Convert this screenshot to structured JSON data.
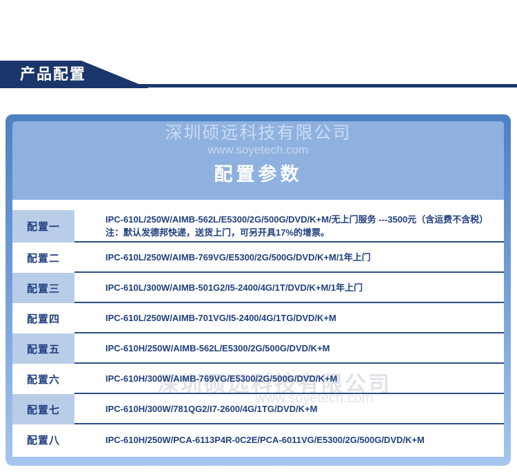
{
  "banner": {
    "label": "产品配置"
  },
  "panel": {
    "watermark": {
      "company": "深圳硕远科技有限公司",
      "website": "www.soyetech.com"
    },
    "title": "配置参数",
    "table": {
      "rows": [
        {
          "label": "配置一",
          "line1": "IPC-610L/250W/AIMB-562L/E5300/2G/500G/DVD/K+M/无上门服务 ---3500元（含运费不含税）",
          "line2": "注：默认发德邦快递，送货上门，可另开具17%的增票。"
        },
        {
          "label": "配置二",
          "line1": "IPC-610L/250W/AIMB-769VG/E5300/2G/500G/DVD/K+M/1年上门"
        },
        {
          "label": "配置三",
          "line1": "IPC-610L/300W/AIMB-501G2/I5-2400/4G/1T/DVD/K+M/1年上门"
        },
        {
          "label": "配置四",
          "line1": "IPC-610L/250W/AIMB-701VG/I5-2400/4G/1TG/DVD/K+M"
        },
        {
          "label": "配置五",
          "line1": "IPC-610H/250W/AIMB-562L/E5300/2G/500G/DVD/K+M"
        },
        {
          "label": "配置六",
          "line1": "IPC-610H/300W/AIMB-769VG/E5300/2G/500G/DVD/K+M"
        },
        {
          "label": "配置七",
          "line1": "IPC-610H/300W/781QG2/I7-2600/4G/1TG/DVD/K+M"
        },
        {
          "label": "配置八",
          "line1": "IPC-610H/250W/PCA-6113P4R-0C2E/PCA-6011VG/E5300/2G/500G/DVD/K+M"
        }
      ]
    }
  },
  "colors": {
    "banner_navy": "#1b366b",
    "panel_border_blue": "#4d80c4",
    "panel_header_fill": "#8eb1df",
    "label_cell_blue": "#b9cde9",
    "text_navy": "#21407f",
    "separator_navy": "#2b4b82"
  }
}
